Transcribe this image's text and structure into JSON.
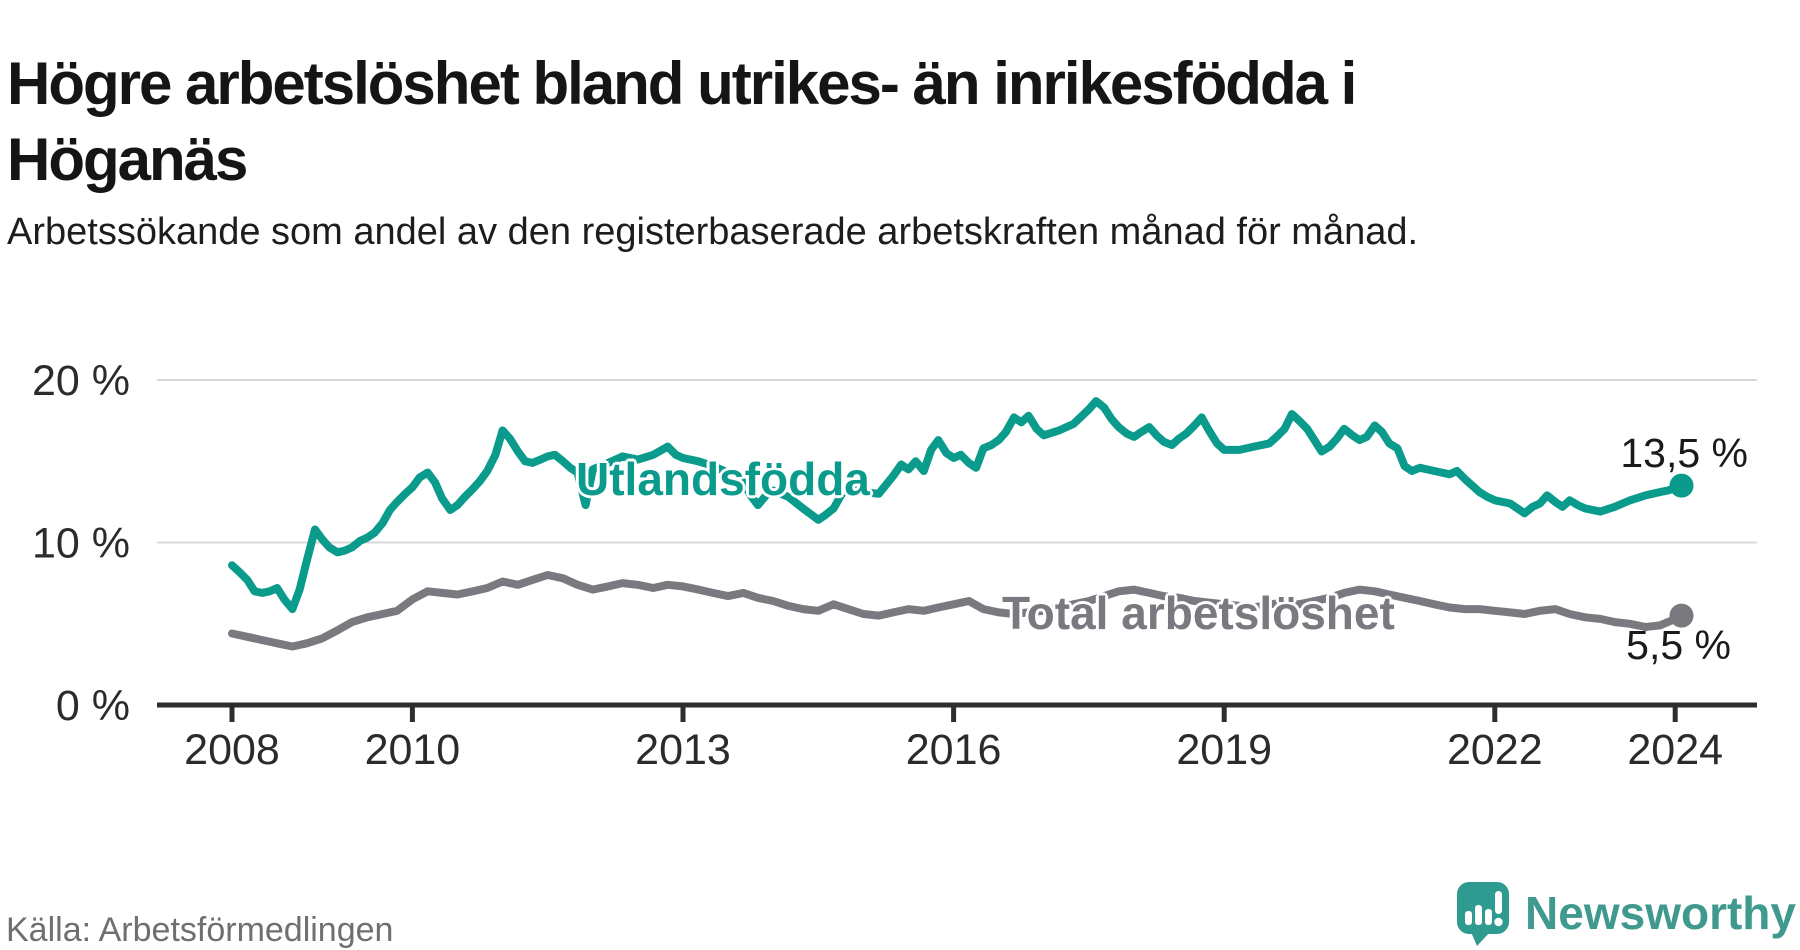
{
  "header": {
    "title": "Högre arbetslöshet bland utrikes- än inrikesfödda i Höganäs",
    "subtitle": "Arbetssökande som andel av den registerbaserade arbetskraften månad för månad."
  },
  "chart_data": {
    "type": "line",
    "title": "Högre arbetslöshet bland utrikes- än inrikesfödda i Höganäs",
    "xlabel": "",
    "ylabel": "Arbetssökande som andel av den registerbaserade arbetskraften (%)",
    "xlim": [
      2007.9,
      2024.8
    ],
    "ylim": [
      0,
      21.5
    ],
    "grid": "horizontal",
    "x_ticks": [
      2008,
      2010,
      2013,
      2016,
      2019,
      2022,
      2024
    ],
    "y_ticks": [
      {
        "value": 0,
        "label": "0 %"
      },
      {
        "value": 10,
        "label": "10 %"
      },
      {
        "value": 20,
        "label": "20 %"
      }
    ],
    "legend_position": "inline-labels",
    "series": [
      {
        "name": "Utlandsfödda",
        "color": "#0a9b8c",
        "end_label": "13,5 %",
        "end_value": 13.5,
        "points": [
          [
            2008.0,
            8.6
          ],
          [
            2008.08,
            8.2
          ],
          [
            2008.17,
            7.7
          ],
          [
            2008.25,
            7.0
          ],
          [
            2008.33,
            6.9
          ],
          [
            2008.42,
            7.0
          ],
          [
            2008.5,
            7.2
          ],
          [
            2008.58,
            6.5
          ],
          [
            2008.67,
            5.9
          ],
          [
            2008.75,
            7.1
          ],
          [
            2008.83,
            8.9
          ],
          [
            2008.92,
            10.8
          ],
          [
            2009.0,
            10.2
          ],
          [
            2009.08,
            9.7
          ],
          [
            2009.17,
            9.4
          ],
          [
            2009.25,
            9.5
          ],
          [
            2009.33,
            9.7
          ],
          [
            2009.42,
            10.1
          ],
          [
            2009.5,
            10.3
          ],
          [
            2009.58,
            10.6
          ],
          [
            2009.67,
            11.2
          ],
          [
            2009.75,
            12.0
          ],
          [
            2009.83,
            12.5
          ],
          [
            2009.92,
            13.0
          ],
          [
            2010.0,
            13.4
          ],
          [
            2010.08,
            14.0
          ],
          [
            2010.17,
            14.3
          ],
          [
            2010.25,
            13.7
          ],
          [
            2010.33,
            12.7
          ],
          [
            2010.42,
            12.0
          ],
          [
            2010.5,
            12.3
          ],
          [
            2010.58,
            12.8
          ],
          [
            2010.67,
            13.3
          ],
          [
            2010.75,
            13.8
          ],
          [
            2010.83,
            14.4
          ],
          [
            2010.92,
            15.4
          ],
          [
            2011.0,
            16.9
          ],
          [
            2011.08,
            16.4
          ],
          [
            2011.17,
            15.6
          ],
          [
            2011.25,
            15.0
          ],
          [
            2011.33,
            14.9
          ],
          [
            2011.42,
            15.1
          ],
          [
            2011.5,
            15.3
          ],
          [
            2011.58,
            15.4
          ],
          [
            2011.67,
            15.0
          ],
          [
            2011.75,
            14.6
          ],
          [
            2011.83,
            14.3
          ],
          [
            2011.92,
            12.3
          ],
          [
            2012.0,
            14.5
          ],
          [
            2012.17,
            14.9
          ],
          [
            2012.33,
            15.3
          ],
          [
            2012.5,
            15.1
          ],
          [
            2012.67,
            15.4
          ],
          [
            2012.83,
            15.9
          ],
          [
            2012.92,
            15.4
          ],
          [
            2013.0,
            15.2
          ],
          [
            2013.17,
            15.0
          ],
          [
            2013.33,
            14.7
          ],
          [
            2013.5,
            14.3
          ],
          [
            2013.67,
            13.7
          ],
          [
            2013.75,
            12.9
          ],
          [
            2013.83,
            12.3
          ],
          [
            2013.92,
            12.9
          ],
          [
            2014.0,
            13.2
          ],
          [
            2014.17,
            12.8
          ],
          [
            2014.33,
            12.1
          ],
          [
            2014.5,
            11.4
          ],
          [
            2014.58,
            11.7
          ],
          [
            2014.67,
            12.1
          ],
          [
            2014.75,
            12.9
          ],
          [
            2014.83,
            13.4
          ],
          [
            2014.92,
            13.3
          ],
          [
            2015.0,
            13.1
          ],
          [
            2015.17,
            13.0
          ],
          [
            2015.33,
            14.1
          ],
          [
            2015.42,
            14.8
          ],
          [
            2015.5,
            14.5
          ],
          [
            2015.58,
            15.0
          ],
          [
            2015.67,
            14.4
          ],
          [
            2015.75,
            15.7
          ],
          [
            2015.83,
            16.3
          ],
          [
            2015.92,
            15.5
          ],
          [
            2016.0,
            15.2
          ],
          [
            2016.08,
            15.4
          ],
          [
            2016.17,
            14.9
          ],
          [
            2016.25,
            14.6
          ],
          [
            2016.33,
            15.8
          ],
          [
            2016.42,
            16.0
          ],
          [
            2016.5,
            16.3
          ],
          [
            2016.58,
            16.8
          ],
          [
            2016.67,
            17.7
          ],
          [
            2016.75,
            17.4
          ],
          [
            2016.83,
            17.8
          ],
          [
            2016.92,
            17.0
          ],
          [
            2017.0,
            16.6
          ],
          [
            2017.17,
            16.9
          ],
          [
            2017.33,
            17.3
          ],
          [
            2017.5,
            18.2
          ],
          [
            2017.58,
            18.7
          ],
          [
            2017.67,
            18.3
          ],
          [
            2017.75,
            17.6
          ],
          [
            2017.83,
            17.1
          ],
          [
            2017.92,
            16.7
          ],
          [
            2018.0,
            16.5
          ],
          [
            2018.08,
            16.8
          ],
          [
            2018.17,
            17.1
          ],
          [
            2018.25,
            16.6
          ],
          [
            2018.33,
            16.2
          ],
          [
            2018.42,
            16.0
          ],
          [
            2018.5,
            16.4
          ],
          [
            2018.58,
            16.7
          ],
          [
            2018.67,
            17.2
          ],
          [
            2018.75,
            17.7
          ],
          [
            2018.83,
            16.9
          ],
          [
            2018.92,
            16.1
          ],
          [
            2019.0,
            15.7
          ],
          [
            2019.17,
            15.7
          ],
          [
            2019.33,
            15.9
          ],
          [
            2019.5,
            16.1
          ],
          [
            2019.58,
            16.5
          ],
          [
            2019.67,
            17.0
          ],
          [
            2019.75,
            17.9
          ],
          [
            2019.83,
            17.5
          ],
          [
            2019.92,
            17.0
          ],
          [
            2020.0,
            16.3
          ],
          [
            2020.08,
            15.6
          ],
          [
            2020.17,
            15.9
          ],
          [
            2020.25,
            16.4
          ],
          [
            2020.33,
            17.0
          ],
          [
            2020.42,
            16.6
          ],
          [
            2020.5,
            16.3
          ],
          [
            2020.58,
            16.5
          ],
          [
            2020.67,
            17.2
          ],
          [
            2020.75,
            16.8
          ],
          [
            2020.83,
            16.1
          ],
          [
            2020.92,
            15.8
          ],
          [
            2021.0,
            14.7
          ],
          [
            2021.08,
            14.4
          ],
          [
            2021.17,
            14.6
          ],
          [
            2021.33,
            14.4
          ],
          [
            2021.5,
            14.2
          ],
          [
            2021.58,
            14.4
          ],
          [
            2021.67,
            13.9
          ],
          [
            2021.75,
            13.5
          ],
          [
            2021.83,
            13.1
          ],
          [
            2021.92,
            12.8
          ],
          [
            2022.0,
            12.6
          ],
          [
            2022.17,
            12.4
          ],
          [
            2022.33,
            11.8
          ],
          [
            2022.42,
            12.2
          ],
          [
            2022.5,
            12.4
          ],
          [
            2022.58,
            12.9
          ],
          [
            2022.67,
            12.5
          ],
          [
            2022.75,
            12.2
          ],
          [
            2022.83,
            12.6
          ],
          [
            2022.92,
            12.3
          ],
          [
            2023.0,
            12.1
          ],
          [
            2023.17,
            11.9
          ],
          [
            2023.33,
            12.2
          ],
          [
            2023.5,
            12.6
          ],
          [
            2023.67,
            12.9
          ],
          [
            2023.83,
            13.1
          ],
          [
            2023.92,
            13.2
          ],
          [
            2024.07,
            13.5
          ]
        ]
      },
      {
        "name": "Total arbetslöshet",
        "color": "#797980",
        "end_label": "5,5 %",
        "end_value": 5.5,
        "points": [
          [
            2008.0,
            4.4
          ],
          [
            2008.17,
            4.2
          ],
          [
            2008.33,
            4.0
          ],
          [
            2008.5,
            3.8
          ],
          [
            2008.67,
            3.6
          ],
          [
            2008.83,
            3.8
          ],
          [
            2009.0,
            4.1
          ],
          [
            2009.17,
            4.6
          ],
          [
            2009.33,
            5.1
          ],
          [
            2009.5,
            5.4
          ],
          [
            2009.67,
            5.6
          ],
          [
            2009.83,
            5.8
          ],
          [
            2010.0,
            6.5
          ],
          [
            2010.17,
            7.0
          ],
          [
            2010.33,
            6.9
          ],
          [
            2010.5,
            6.8
          ],
          [
            2010.67,
            7.0
          ],
          [
            2010.83,
            7.2
          ],
          [
            2011.0,
            7.6
          ],
          [
            2011.17,
            7.4
          ],
          [
            2011.33,
            7.7
          ],
          [
            2011.5,
            8.0
          ],
          [
            2011.67,
            7.8
          ],
          [
            2011.83,
            7.4
          ],
          [
            2012.0,
            7.1
          ],
          [
            2012.17,
            7.3
          ],
          [
            2012.33,
            7.5
          ],
          [
            2012.5,
            7.4
          ],
          [
            2012.67,
            7.2
          ],
          [
            2012.83,
            7.4
          ],
          [
            2013.0,
            7.3
          ],
          [
            2013.17,
            7.1
          ],
          [
            2013.33,
            6.9
          ],
          [
            2013.5,
            6.7
          ],
          [
            2013.67,
            6.9
          ],
          [
            2013.83,
            6.6
          ],
          [
            2014.0,
            6.4
          ],
          [
            2014.17,
            6.1
          ],
          [
            2014.33,
            5.9
          ],
          [
            2014.5,
            5.8
          ],
          [
            2014.67,
            6.2
          ],
          [
            2014.83,
            5.9
          ],
          [
            2015.0,
            5.6
          ],
          [
            2015.17,
            5.5
          ],
          [
            2015.33,
            5.7
          ],
          [
            2015.5,
            5.9
          ],
          [
            2015.67,
            5.8
          ],
          [
            2015.83,
            6.0
          ],
          [
            2016.0,
            6.2
          ],
          [
            2016.17,
            6.4
          ],
          [
            2016.33,
            5.9
          ],
          [
            2016.5,
            5.7
          ],
          [
            2016.67,
            5.6
          ],
          [
            2016.83,
            5.7
          ],
          [
            2017.0,
            5.8
          ],
          [
            2017.17,
            6.0
          ],
          [
            2017.33,
            6.2
          ],
          [
            2017.5,
            6.4
          ],
          [
            2017.67,
            6.7
          ],
          [
            2017.83,
            7.0
          ],
          [
            2018.0,
            7.1
          ],
          [
            2018.17,
            6.9
          ],
          [
            2018.33,
            6.7
          ],
          [
            2018.5,
            6.6
          ],
          [
            2018.67,
            6.4
          ],
          [
            2018.83,
            6.3
          ],
          [
            2019.0,
            6.2
          ],
          [
            2019.17,
            6.1
          ],
          [
            2019.33,
            6.0
          ],
          [
            2019.5,
            6.2
          ],
          [
            2019.67,
            6.3
          ],
          [
            2019.83,
            6.2
          ],
          [
            2020.0,
            6.4
          ],
          [
            2020.17,
            6.6
          ],
          [
            2020.33,
            6.9
          ],
          [
            2020.5,
            7.1
          ],
          [
            2020.67,
            7.0
          ],
          [
            2020.83,
            6.8
          ],
          [
            2021.0,
            6.6
          ],
          [
            2021.17,
            6.4
          ],
          [
            2021.33,
            6.2
          ],
          [
            2021.5,
            6.0
          ],
          [
            2021.67,
            5.9
          ],
          [
            2021.83,
            5.9
          ],
          [
            2022.0,
            5.8
          ],
          [
            2022.17,
            5.7
          ],
          [
            2022.33,
            5.6
          ],
          [
            2022.5,
            5.8
          ],
          [
            2022.67,
            5.9
          ],
          [
            2022.83,
            5.6
          ],
          [
            2023.0,
            5.4
          ],
          [
            2023.17,
            5.3
          ],
          [
            2023.33,
            5.1
          ],
          [
            2023.5,
            5.0
          ],
          [
            2023.67,
            4.8
          ],
          [
            2023.83,
            4.9
          ],
          [
            2024.0,
            5.3
          ],
          [
            2024.07,
            5.5
          ]
        ]
      }
    ]
  },
  "footer": {
    "source": "Källa: Arbetsförmedlingen",
    "brand": "Newsworthy"
  },
  "colors": {
    "accent_teal": "#0a9b8c",
    "series_gray": "#797980",
    "gridline": "#d8d8d8",
    "axis": "#2e2e2e",
    "tick_label": "#2b2b2b",
    "source_text": "#6f6f6f",
    "brand_teal": "#3f998f"
  }
}
